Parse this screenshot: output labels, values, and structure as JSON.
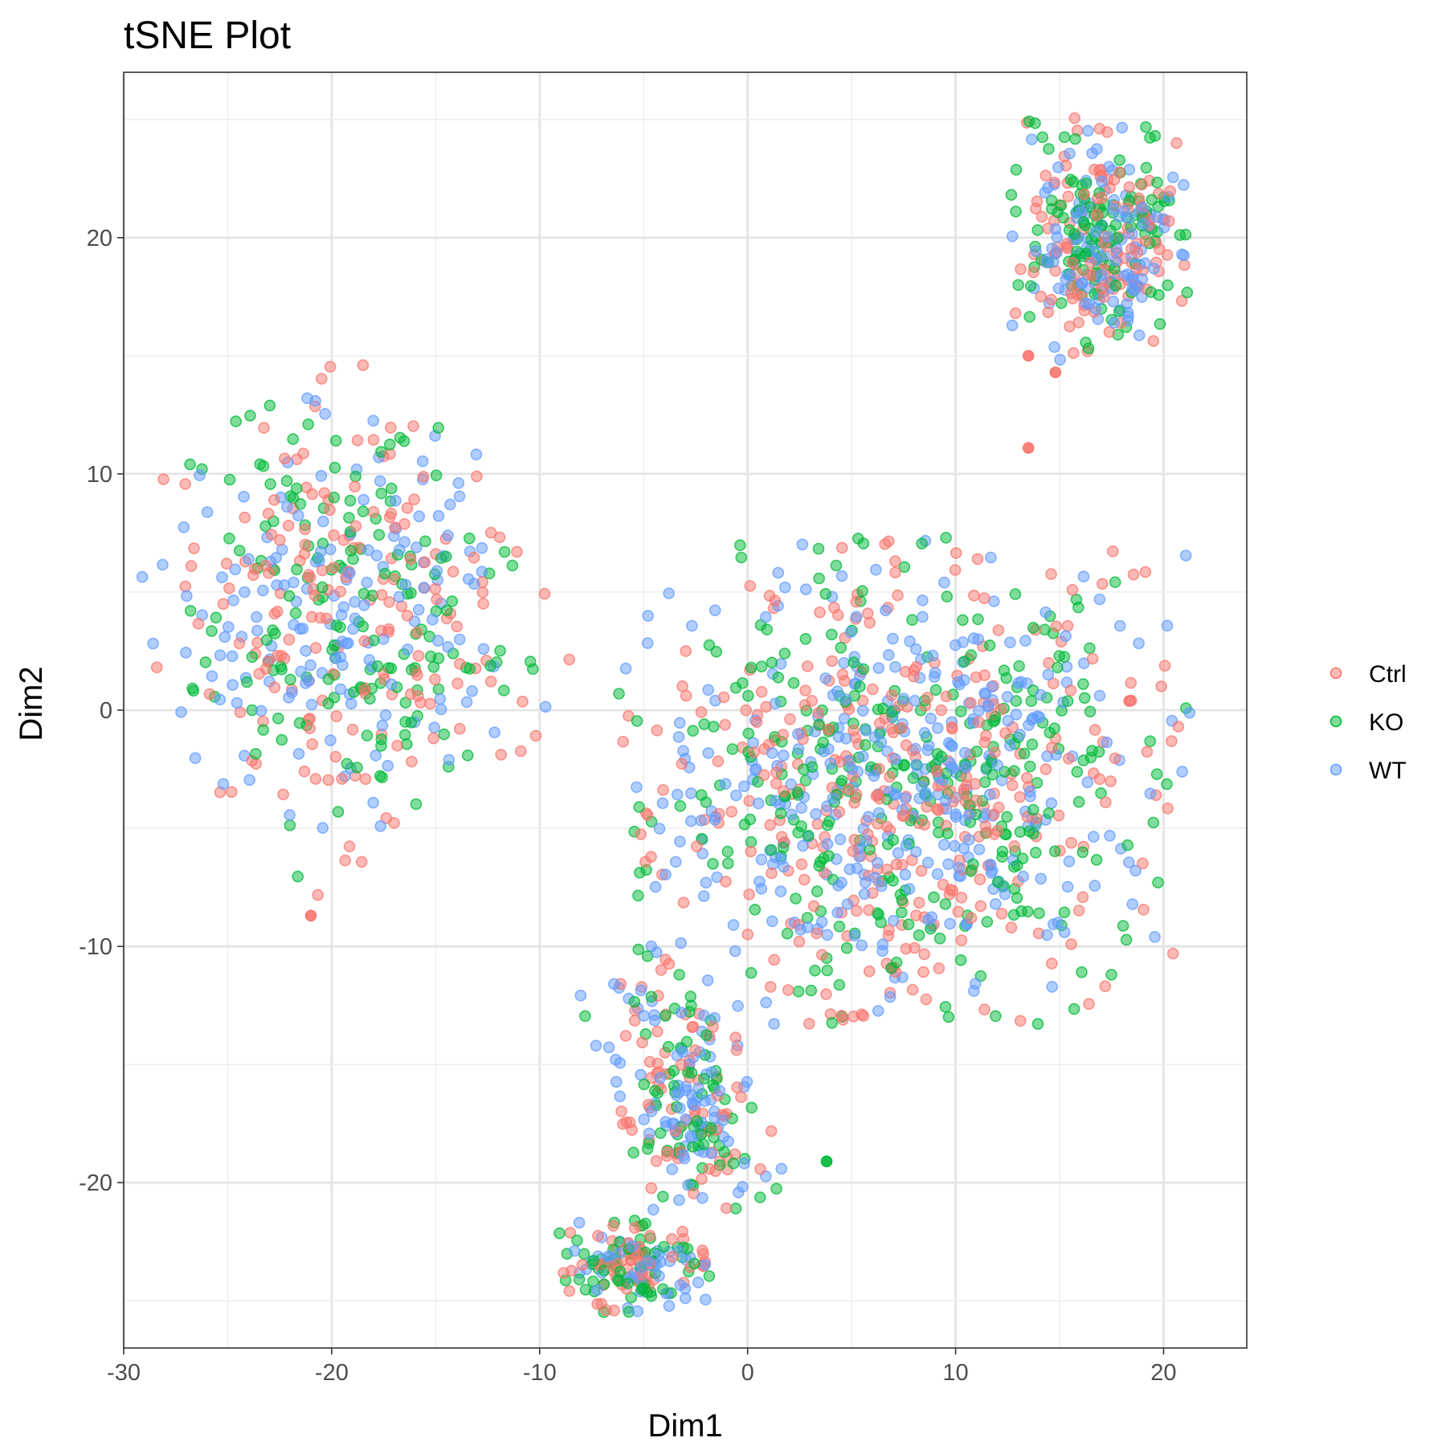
{
  "chart_data": {
    "type": "scatter",
    "title": "tSNE Plot",
    "xlabel": "Dim1",
    "ylabel": "Dim2",
    "xlim": [
      -30,
      24
    ],
    "ylim": [
      -27,
      27
    ],
    "x_ticks": [
      -30,
      -20,
      -10,
      0,
      10,
      20
    ],
    "y_ticks": [
      -20,
      -10,
      0,
      10,
      20
    ],
    "x_tick_labels": [
      "-30",
      "-20",
      "-10",
      "0",
      "10",
      "20"
    ],
    "y_tick_labels": [
      "-20",
      "-10",
      "0",
      "10",
      "20"
    ],
    "grid": true,
    "legend_position": "right",
    "point_opacity": 0.5,
    "series": [
      {
        "name": "Ctrl",
        "color": "#F8766D"
      },
      {
        "name": "KO",
        "color": "#00BA38"
      },
      {
        "name": "WT",
        "color": "#619CFF"
      }
    ],
    "clusters": [
      {
        "cx": -19.5,
        "cy": 4.0,
        "rx": 8.0,
        "ry": 8.5,
        "tilt": 0.55,
        "count": 520
      },
      {
        "cx": 7.5,
        "cy": -3.0,
        "rx": 12.0,
        "ry": 9.0,
        "tilt": 0.0,
        "count": 1050
      },
      {
        "cx": -3.0,
        "cy": -16.0,
        "rx": 3.0,
        "ry": 5.0,
        "tilt": 0.4,
        "count": 230
      },
      {
        "cx": -5.5,
        "cy": -23.5,
        "rx": 3.2,
        "ry": 1.8,
        "tilt": 0.0,
        "count": 170
      },
      {
        "cx": 17.0,
        "cy": 20.0,
        "rx": 3.8,
        "ry": 4.5,
        "tilt": 0.0,
        "count": 380
      }
    ],
    "outliers": [
      {
        "x": -21.0,
        "y": -8.7,
        "series": "Ctrl"
      },
      {
        "x": 3.8,
        "y": -19.1,
        "series": "KO"
      },
      {
        "x": 13.5,
        "y": 11.1,
        "series": "Ctrl"
      },
      {
        "x": 14.8,
        "y": 14.3,
        "series": "Ctrl"
      },
      {
        "x": 13.5,
        "y": 15.0,
        "series": "Ctrl"
      }
    ]
  }
}
